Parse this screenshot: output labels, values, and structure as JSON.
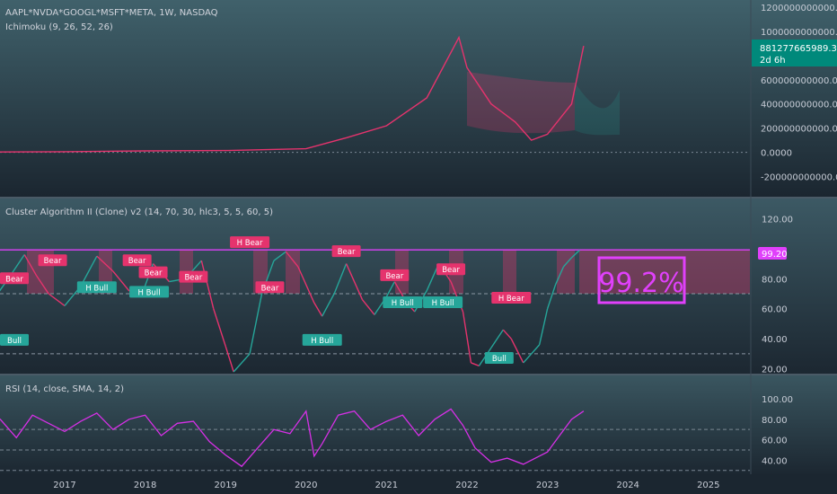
{
  "header": {
    "symbol": "AAPL*NVDA*GOOGL*MSFT*META, 1W, NASDAQ",
    "indicator1": "Ichimoku (9, 26, 52, 26)"
  },
  "price_badge": {
    "value": "881277665989.30",
    "countdown": "2d 6h"
  },
  "pane2": {
    "title": "Cluster Algorithm II (Clone) v2 (14, 70, 30, hlc3, 5, 5, 60, 5)",
    "level_badge": "99.20",
    "big_value": "99.2%"
  },
  "pane3": {
    "title": "RSI (14, close, SMA, 14, 2)"
  },
  "colors": {
    "background": "#1e2a35",
    "bear": "#e5336d",
    "bull": "#26a69a",
    "rsi": "#d630e6",
    "highlight": "#e040fb",
    "price_badge": "#00897b"
  },
  "chart_data": [
    {
      "type": "line",
      "name": "price-pane",
      "x": [
        2016.0,
        2017.0,
        2018.0,
        2019.0,
        2020.0,
        2020.5,
        2021.0,
        2021.5,
        2021.9,
        2022.0,
        2022.3,
        2022.6,
        2022.8,
        2023.0,
        2023.3,
        2023.45
      ],
      "series": [
        {
          "values": [
            3000000000.0,
            5000000000.0,
            12000000000.0,
            15000000000.0,
            30000000000.0,
            120000000000.0,
            220000000000.0,
            450000000000.0,
            950000000000.0,
            700000000000.0,
            400000000000.0,
            250000000000.0,
            100000000000.0,
            150000000000.0,
            400000000000.0,
            880000000000.0
          ]
        }
      ],
      "ylim": [
        -300000000000,
        1200000000000
      ],
      "yticks": [
        "1200000000000.00",
        "1000000000000.00",
        "600000000000.00",
        "400000000000.00",
        "200000000000.00",
        "0.0000",
        "-200000000000.00"
      ]
    },
    {
      "type": "line",
      "name": "cluster-pane",
      "ylim": [
        18,
        122
      ],
      "yticks": [
        "120.00",
        "80.00",
        "60.00",
        "40.00",
        "20.00"
      ],
      "levels": [
        99.2,
        70,
        30
      ],
      "x": [
        2016.0,
        2016.1,
        2016.3,
        2016.5,
        2016.65,
        2016.8,
        2017.0,
        2017.2,
        2017.4,
        2017.6,
        2017.8,
        2017.95,
        2018.1,
        2018.3,
        2018.5,
        2018.7,
        2018.85,
        2019.0,
        2019.1,
        2019.3,
        2019.45,
        2019.6,
        2019.75,
        2019.9,
        2020.1,
        2020.2,
        2020.35,
        2020.5,
        2020.7,
        2020.85,
        2021.0,
        2021.1,
        2021.25,
        2021.35,
        2021.5,
        2021.65,
        2021.8,
        2021.95,
        2022.05,
        2022.15,
        2022.3,
        2022.45,
        2022.55,
        2022.7,
        2022.8,
        2022.9,
        2023.0,
        2023.1,
        2023.2,
        2023.3,
        2023.4
      ],
      "series": [
        {
          "values": [
            70,
            65,
            80,
            96,
            82,
            70,
            62,
            75,
            95,
            85,
            72,
            68,
            90,
            78,
            80,
            92,
            60,
            35,
            18,
            30,
            70,
            92,
            98,
            88,
            64,
            55,
            70,
            90,
            66,
            56,
            68,
            78,
            64,
            58,
            72,
            90,
            78,
            58,
            24,
            22,
            34,
            46,
            40,
            24,
            30,
            36,
            60,
            76,
            88,
            94,
            99
          ]
        }
      ],
      "signals": [
        {
          "label": "Bear",
          "x": 2016.1,
          "y": 80
        },
        {
          "label": "Bear",
          "x": 2016.85,
          "y": 92
        },
        {
          "label": "H Bull",
          "x": 2017.4,
          "y": 74
        },
        {
          "label": "Bear",
          "x": 2017.9,
          "y": 92
        },
        {
          "label": "H Bull",
          "x": 2018.05,
          "y": 71
        },
        {
          "label": "Bear",
          "x": 2018.1,
          "y": 84
        },
        {
          "label": "Bear",
          "x": 2018.6,
          "y": 81
        },
        {
          "label": "H Bear",
          "x": 2019.3,
          "y": 104
        },
        {
          "label": "Bear",
          "x": 2019.55,
          "y": 74
        },
        {
          "label": "H Bull",
          "x": 2020.2,
          "y": 39
        },
        {
          "label": "Bear",
          "x": 2020.5,
          "y": 98
        },
        {
          "label": "Bear",
          "x": 2021.1,
          "y": 82
        },
        {
          "label": "H Bull",
          "x": 2021.2,
          "y": 64
        },
        {
          "label": "Bear",
          "x": 2021.8,
          "y": 86
        },
        {
          "label": "H Bull",
          "x": 2021.7,
          "y": 64
        },
        {
          "label": "H Bear",
          "x": 2022.55,
          "y": 67
        },
        {
          "label": "Bull",
          "x": 2022.4,
          "y": 27
        },
        {
          "label": "Bull",
          "x": 2016.0,
          "y": 39
        }
      ]
    },
    {
      "type": "line",
      "name": "rsi-pane",
      "ylim": [
        28,
        100
      ],
      "yticks": [
        "100.00",
        "80.00",
        "60.00",
        "40.00"
      ],
      "levels": [
        70,
        30
      ],
      "x": [
        2016.0,
        2016.2,
        2016.4,
        2016.6,
        2016.8,
        2017.0,
        2017.2,
        2017.4,
        2017.6,
        2017.8,
        2018.0,
        2018.2,
        2018.4,
        2018.6,
        2018.8,
        2019.0,
        2019.2,
        2019.4,
        2019.6,
        2019.8,
        2020.0,
        2020.1,
        2020.2,
        2020.4,
        2020.6,
        2020.8,
        2021.0,
        2021.2,
        2021.4,
        2021.6,
        2021.8,
        2021.95,
        2022.1,
        2022.3,
        2022.5,
        2022.7,
        2022.9,
        2023.0,
        2023.15,
        2023.3,
        2023.45
      ],
      "series": [
        {
          "values": [
            72,
            80,
            62,
            84,
            76,
            68,
            78,
            86,
            70,
            80,
            84,
            64,
            76,
            78,
            58,
            45,
            34,
            52,
            70,
            66,
            88,
            44,
            56,
            84,
            88,
            70,
            78,
            84,
            64,
            80,
            90,
            74,
            52,
            38,
            42,
            36,
            44,
            48,
            64,
            80,
            88
          ]
        }
      ]
    }
  ],
  "x_axis": {
    "labels": [
      "2017",
      "2018",
      "2019",
      "2020",
      "2021",
      "2022",
      "2023",
      "2024",
      "2025"
    ]
  }
}
